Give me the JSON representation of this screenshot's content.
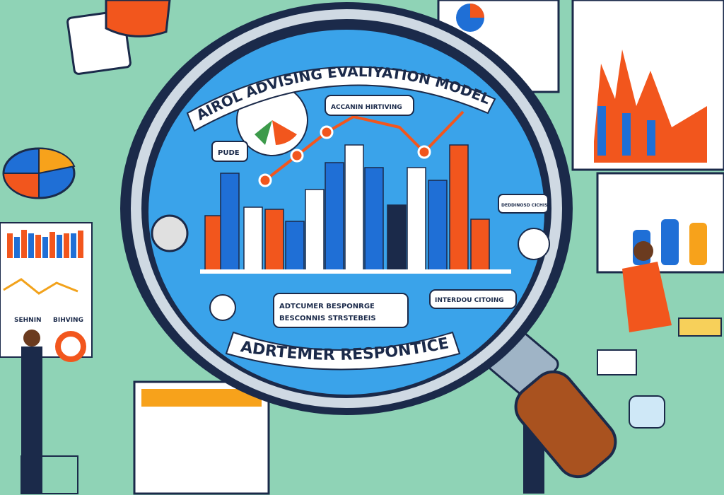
{
  "banner_top": "AIROL ADVISING EVALIYATION MODELS",
  "banner_bottom": "ADRTEMER RESPONTICE",
  "bubbles": {
    "top": "ACCANIN HIRTIVING",
    "left": "PUDE",
    "center": [
      "ADTCUMER BESPONRGE",
      "BESCONNIS STRSTEBEIS"
    ],
    "right": "INTERDOU CITOING",
    "right_small": "DEDDINOSD CICHISD"
  },
  "left_panel_labels": [
    "SEHNIN",
    "BIHVING"
  ],
  "colors": {
    "background": "#8fd3b6",
    "lens": "#3aa3ea",
    "orange": "#f2561d",
    "blue": "#1f6fd6",
    "navy": "#1b2a4a"
  }
}
